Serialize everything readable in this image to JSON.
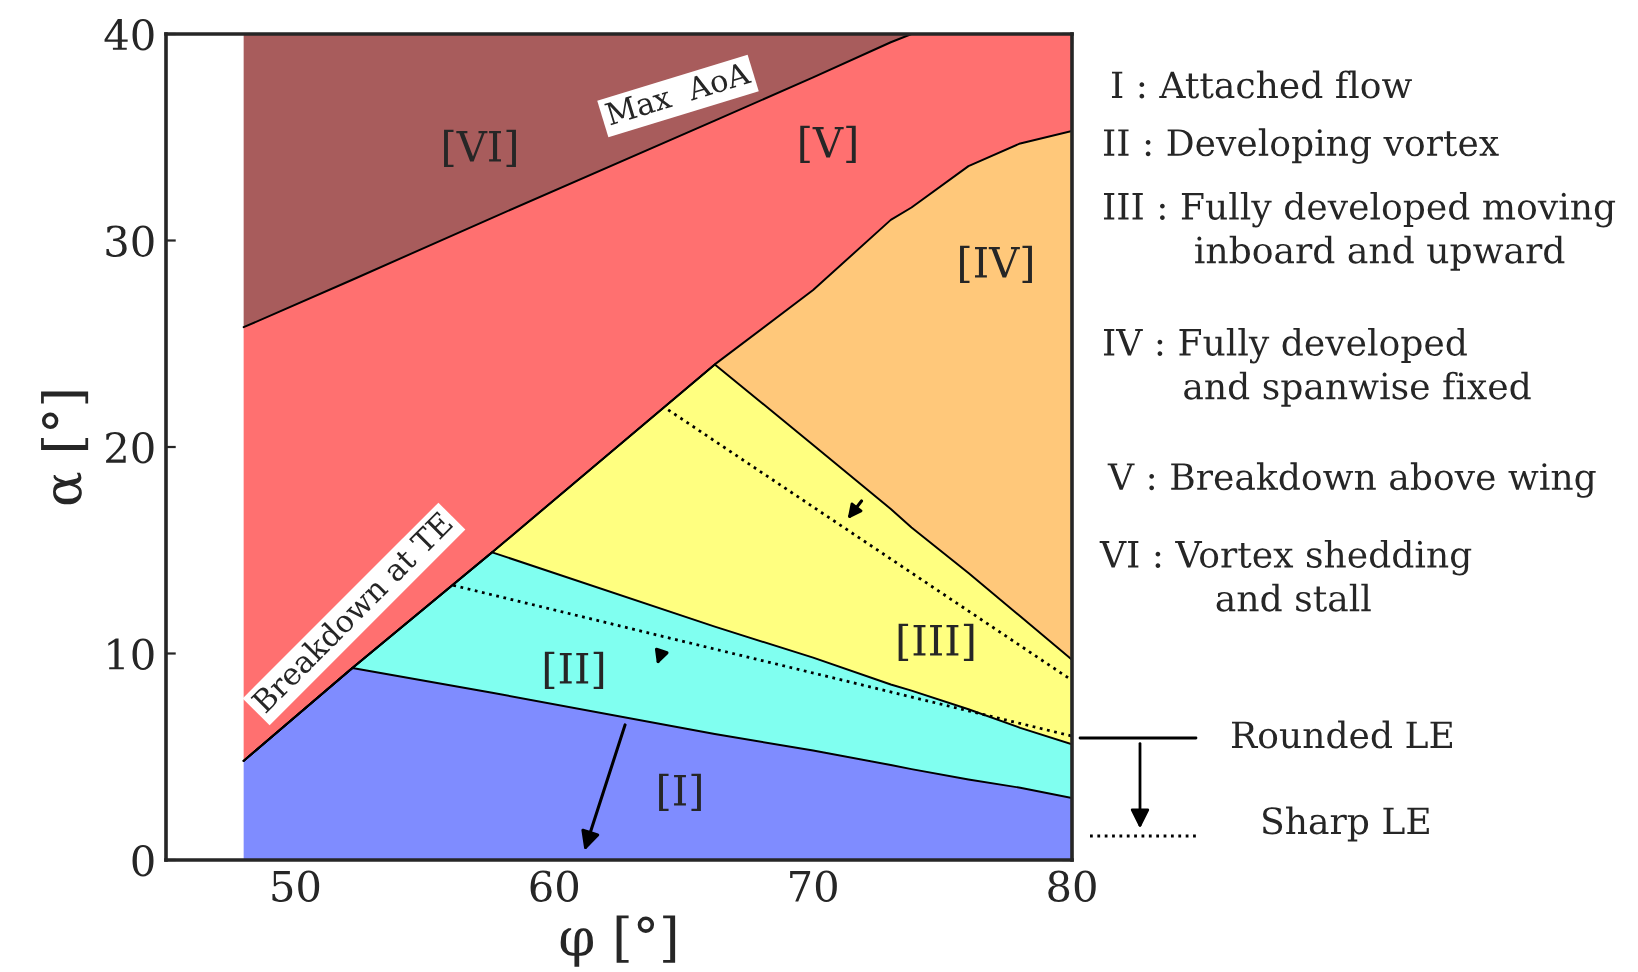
{
  "chart_data": {
    "type": "area",
    "stacked": true,
    "xlabel": "φ [°]",
    "ylabel": "α [°]",
    "xlim": [
      45,
      80
    ],
    "ylim": [
      0,
      40
    ],
    "xticks": [
      50,
      60,
      70,
      80
    ],
    "yticks": [
      0,
      10,
      20,
      30,
      40
    ],
    "x": [
      48,
      52.2,
      57.6,
      66.2,
      70,
      73,
      73.8,
      76,
      78,
      80
    ],
    "series": [
      {
        "color": "#7f8cff",
        "values": [
          4.8,
          9.3,
          8.1,
          6.1,
          5.3,
          4.6,
          4.4,
          3.9,
          3.5,
          3.0
        ]
      },
      {
        "color": "#80fff0",
        "values": [
          0,
          0,
          6.8,
          5.2,
          4.5,
          3.9,
          3.8,
          3.4,
          2.9,
          2.6
        ]
      },
      {
        "color": "#ffff80",
        "values": [
          0,
          0,
          0,
          12.7,
          10.3,
          8.5,
          7.9,
          6.6,
          5.4,
          4.1
        ]
      },
      {
        "color": "#ffc87a",
        "values": [
          0,
          0,
          0,
          0,
          7.5,
          14.0,
          15.5,
          19.7,
          22.9,
          25.6
        ]
      },
      {
        "color": "#ff7070",
        "values": [
          21.0,
          18.8,
          16.2,
          11.8,
          10.3,
          8.6,
          8.4,
          6.4,
          5.3,
          4.7
        ]
      },
      {
        "color": "#a85c5c",
        "values": [
          14.2,
          11.9,
          8.9,
          4.2,
          2.1,
          0.4,
          0,
          0,
          0,
          0
        ]
      },
      {
        "type": "line",
        "color": "#000000",
        "line_style": "dotted",
        "x": [
          64.4,
          80
        ],
        "values": [
          21.8,
          8.7
        ]
      },
      {
        "type": "line",
        "color": "#000000",
        "line_style": "dotted",
        "x": [
          56.1,
          80
        ],
        "values": [
          13.3,
          6.0
        ]
      }
    ],
    "annotations": [
      "[I]",
      "[II]",
      "[III]",
      "[IV]",
      "[V]",
      "[VI]",
      "Max  AoA",
      "Breakdown at TE",
      "I : Attached flow",
      "II : Developing vortex",
      "III : Fully developed moving\n        inboard and upward",
      "IV : Fully developed\n       and spanwise fixed",
      "V : Breakdown above wing",
      "VI : Vortex shedding\n          and stall",
      "Rounded LE",
      "Sharp LE"
    ]
  }
}
